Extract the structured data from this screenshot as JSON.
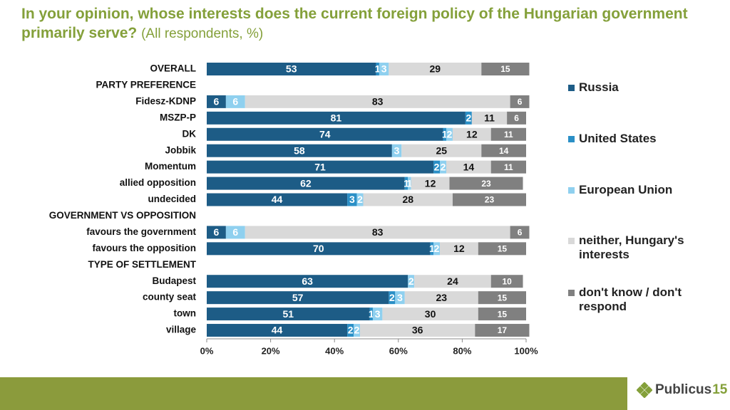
{
  "chart_data": {
    "type": "stacked-barh",
    "title": "In your opinion, whose interests does the current foreign policy of the Hungarian government primarily serve?",
    "subtitle": "(All respondents, %)",
    "categories": [
      "OVERALL",
      "PARTY PREFERENCE",
      "Fidesz-KDNP",
      "MSZP-P",
      "DK",
      "Jobbik",
      "Momentum",
      "allied opposition",
      "undecided",
      "GOVERNMENT VS OPPOSITION",
      "favours the government",
      "favours the opposition",
      "TYPE OF SETTLEMENT",
      "Budapest",
      "county seat",
      "town",
      "village"
    ],
    "series": [
      {
        "name": "Russia",
        "color": "#1d5c86",
        "values": [
          53,
          null,
          6,
          81,
          74,
          58,
          71,
          62,
          44,
          null,
          6,
          70,
          null,
          63,
          57,
          51,
          44
        ]
      },
      {
        "name": "United States",
        "color": "#2a8fc6",
        "values": [
          1,
          null,
          0,
          2,
          1,
          0,
          2,
          1,
          3,
          null,
          0,
          1,
          null,
          0,
          2,
          1,
          2
        ]
      },
      {
        "name": "European Union",
        "color": "#8fd0ef",
        "values": [
          3,
          null,
          6,
          0,
          2,
          3,
          2,
          1,
          2,
          null,
          6,
          2,
          null,
          2,
          3,
          3,
          2
        ]
      },
      {
        "name": "neither, Hungary's interests",
        "color": "#d9d9d9",
        "values": [
          29,
          null,
          83,
          11,
          12,
          25,
          14,
          12,
          28,
          null,
          83,
          12,
          null,
          24,
          23,
          30,
          36
        ]
      },
      {
        "name": "don't know / don't respond",
        "color": "#808080",
        "values": [
          15,
          null,
          6,
          6,
          11,
          14,
          11,
          23,
          23,
          null,
          6,
          15,
          null,
          10,
          15,
          15,
          17
        ]
      }
    ],
    "xlim": [
      0,
      100
    ],
    "xticks": [
      {
        "value": 0,
        "label": "0%"
      },
      {
        "value": 20,
        "label": "20%"
      },
      {
        "value": 40,
        "label": "40%"
      },
      {
        "value": 60,
        "label": "60%"
      },
      {
        "value": 80,
        "label": "80%"
      },
      {
        "value": 100,
        "label": "100%"
      }
    ]
  },
  "footer": {
    "logo": "Publicus",
    "logo_number": "15"
  }
}
